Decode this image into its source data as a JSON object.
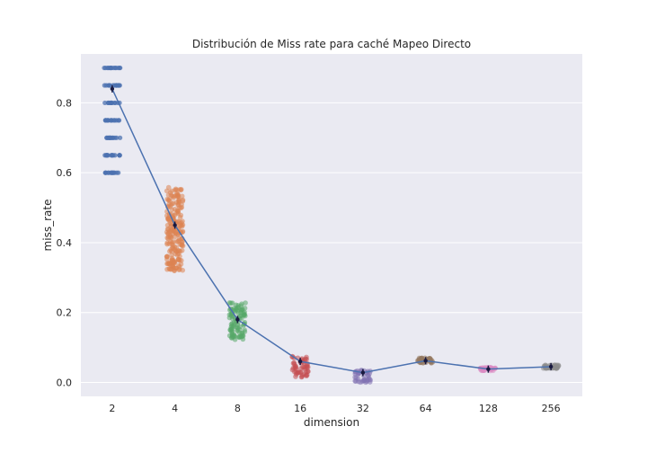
{
  "chart_data": {
    "type": "scatter",
    "title": "Distribución de Miss rate para caché Mapeo Directo",
    "xlabel": "dimension",
    "ylabel": "miss_rate",
    "categories": [
      "2",
      "4",
      "8",
      "16",
      "32",
      "64",
      "128",
      "256"
    ],
    "ylim": [
      -0.04,
      0.94
    ],
    "yticks": [
      0.0,
      0.2,
      0.4,
      0.6,
      0.8
    ],
    "ytick_labels": [
      "0.0",
      "0.2",
      "0.4",
      "0.6",
      "0.8"
    ],
    "grid": true,
    "background": "#eaeaf2",
    "strip_series": [
      {
        "category": "2",
        "color": "#4c72b0",
        "values": [
          0.6,
          0.65,
          0.7,
          0.75,
          0.8,
          0.85,
          0.9
        ],
        "range": [
          0.6,
          0.9
        ]
      },
      {
        "category": "4",
        "color": "#dd8452",
        "range": [
          0.32,
          0.56
        ]
      },
      {
        "category": "8",
        "color": "#55a868",
        "range": [
          0.12,
          0.23
        ]
      },
      {
        "category": "16",
        "color": "#c44e52",
        "range": [
          0.015,
          0.075
        ]
      },
      {
        "category": "32",
        "color": "#8172b3",
        "range": [
          0.0,
          0.035
        ]
      },
      {
        "category": "64",
        "color": "#937860",
        "range": [
          0.055,
          0.07
        ]
      },
      {
        "category": "128",
        "color": "#da8bc3",
        "range": [
          0.033,
          0.043
        ]
      },
      {
        "category": "256",
        "color": "#8c8c8c",
        "range": [
          0.04,
          0.05
        ]
      }
    ],
    "mean_series": {
      "color": "#4c72b0",
      "values": [
        0.84,
        0.45,
        0.18,
        0.06,
        0.028,
        0.062,
        0.038,
        0.045
      ]
    }
  }
}
